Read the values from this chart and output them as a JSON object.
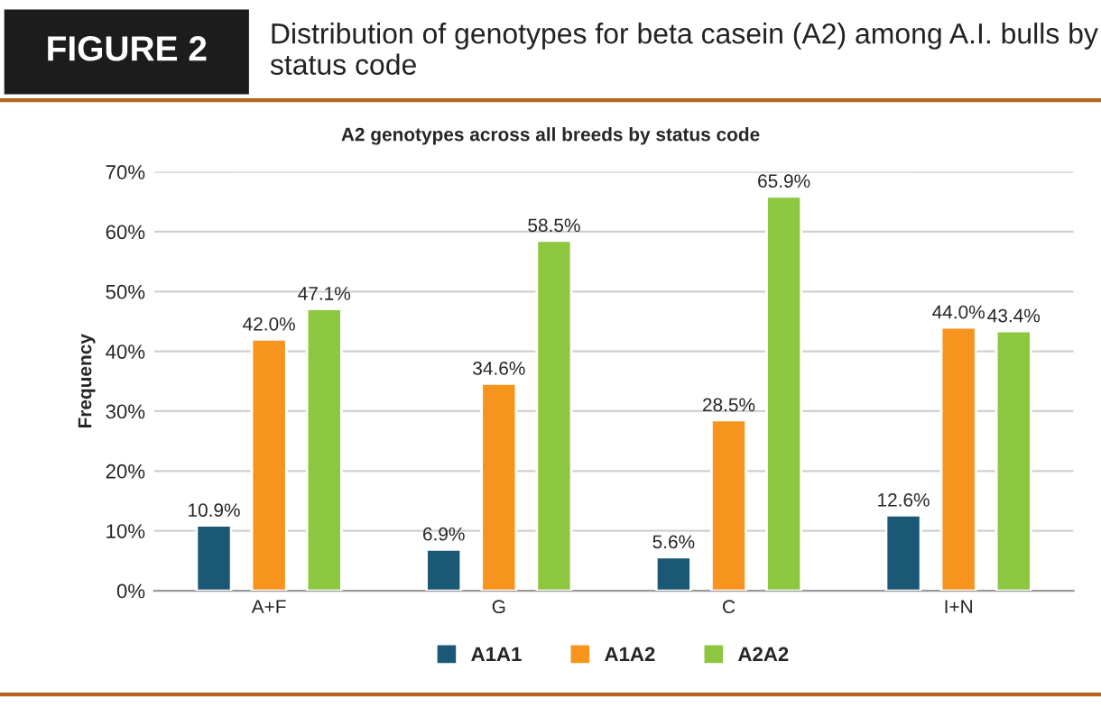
{
  "chart_data": {
    "type": "bar",
    "title": "Distribution of genotypes for beta casein (A2) among A.I. bulls by status code",
    "subtitle": "A2 genotypes across all breeds by status code",
    "annotations": [
      "FIGURE 2"
    ],
    "ylabel": "Frequency",
    "categories": [
      "A+F",
      "G",
      "C",
      "I+N"
    ],
    "series": [
      {
        "name": "A1A1",
        "color": "#1b5876",
        "values": [
          10.9,
          6.9,
          5.6,
          12.6
        ],
        "value_labels": [
          "10.9%",
          "6.9%",
          "5.6%",
          "12.6%"
        ]
      },
      {
        "name": "A1A2",
        "color": "#f7941d",
        "values": [
          42.0,
          34.6,
          28.5,
          44.0
        ],
        "value_labels": [
          "42.0%",
          "34.6%",
          "28.5%",
          "44.0%"
        ]
      },
      {
        "name": "A2A2",
        "color": "#8dc63f",
        "values": [
          47.1,
          58.5,
          65.9,
          43.4
        ],
        "value_labels": [
          "47.1%",
          "58.5%",
          "65.9%",
          "43.4%"
        ]
      }
    ],
    "ylim": [
      0,
      70
    ],
    "yticks": [
      {
        "value": 0,
        "label": "0%"
      },
      {
        "value": 10,
        "label": "10%"
      },
      {
        "value": 20,
        "label": "20%"
      },
      {
        "value": 30,
        "label": "30%"
      },
      {
        "value": 40,
        "label": "40%"
      },
      {
        "value": 50,
        "label": "50%"
      },
      {
        "value": 60,
        "label": "60%"
      },
      {
        "value": 70,
        "label": "70%"
      }
    ],
    "grid": "y",
    "legend": "bottom"
  }
}
